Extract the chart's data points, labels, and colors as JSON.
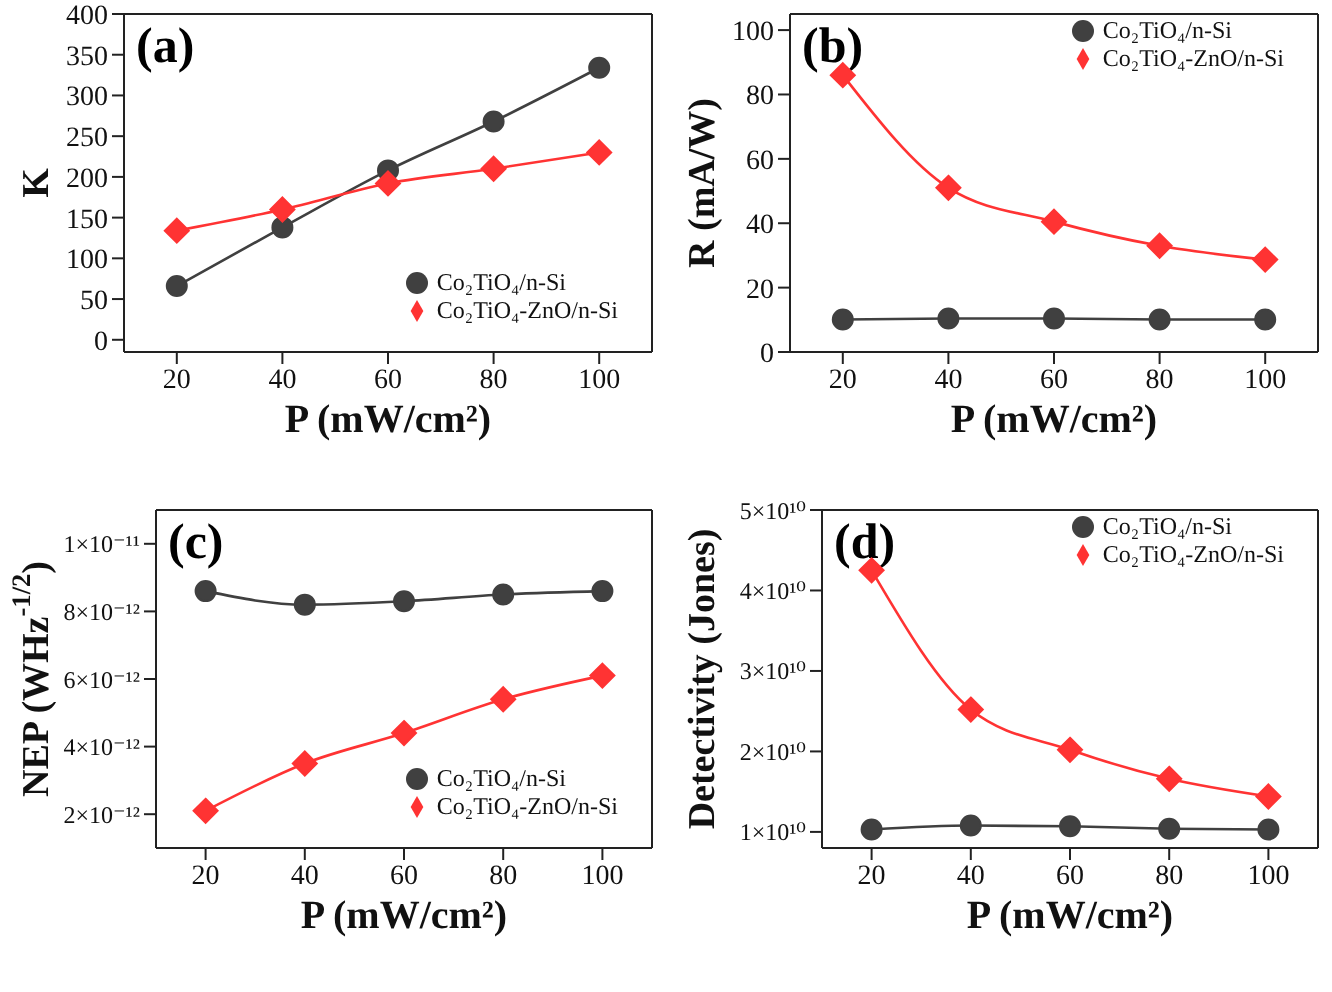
{
  "chart_data": [
    {
      "type": "line",
      "annotations": [
        "(a)"
      ],
      "xlabel": "P (mW/cm²)",
      "ylabel": "K",
      "x": [
        20,
        40,
        60,
        80,
        100
      ],
      "xlim": [
        10,
        110
      ],
      "xticks": [
        20,
        40,
        60,
        80,
        100
      ],
      "ylim": [
        -15,
        400
      ],
      "yticks": [
        0,
        50,
        100,
        150,
        200,
        250,
        300,
        350,
        400
      ],
      "legend": "bottom right",
      "line_style": "solid",
      "series": [
        {
          "name": "Co₂TiO₄/n-Si",
          "color": "#404040",
          "marker": "circle",
          "values": [
            66,
            138,
            208,
            268,
            334
          ]
        },
        {
          "name": "Co₂TiO₄-ZnO/n-Si",
          "color": "#ff3333",
          "marker": "diamond",
          "values": [
            134,
            160,
            192,
            210,
            230
          ]
        }
      ]
    },
    {
      "type": "line",
      "annotations": [
        "(b)"
      ],
      "xlabel": "P (mW/cm²)",
      "ylabel": "R (mA/W)",
      "x": [
        20,
        40,
        60,
        80,
        100
      ],
      "xlim": [
        10,
        110
      ],
      "xticks": [
        20,
        40,
        60,
        80,
        100
      ],
      "ylim": [
        0,
        105
      ],
      "yticks": [
        0,
        20,
        40,
        60,
        80,
        100
      ],
      "legend": "top right",
      "line_style": "solid",
      "series": [
        {
          "name": "Co₂TiO₄/n-Si",
          "color": "#404040",
          "marker": "circle",
          "values": [
            10.1,
            10.4,
            10.4,
            10.1,
            10.1
          ]
        },
        {
          "name": "Co₂TiO₄-ZnO/n-Si",
          "color": "#ff3333",
          "marker": "diamond",
          "values": [
            86,
            51,
            40.5,
            33,
            28.7
          ]
        }
      ]
    },
    {
      "type": "line",
      "annotations": [
        "(c)"
      ],
      "xlabel": "P (mW/cm²)",
      "ylabel": "NEP (WHz$^{-1/2}$)",
      "x": [
        20,
        40,
        60,
        80,
        100
      ],
      "xlim": [
        10,
        110
      ],
      "xticks": [
        20,
        40,
        60,
        80,
        100
      ],
      "ylim": [
        1e-12,
        1.1e-11
      ],
      "yticks": [
        {
          "value": 2e-12,
          "label": "2×10⁻¹²"
        },
        {
          "value": 4e-12,
          "label": "4×10⁻¹²"
        },
        {
          "value": 6e-12,
          "label": "6×10⁻¹²"
        },
        {
          "value": 8e-12,
          "label": "8×10⁻¹²"
        },
        {
          "value": 1e-11,
          "label": "1×10⁻¹¹"
        }
      ],
      "legend": "bottom right",
      "line_style": "solid",
      "series": [
        {
          "name": "Co₂TiO₄/n-Si",
          "color": "#404040",
          "marker": "circle",
          "values": [
            8.6e-12,
            8.2e-12,
            8.3e-12,
            8.5e-12,
            8.6e-12
          ]
        },
        {
          "name": "Co₂TiO₄-ZnO/n-Si",
          "color": "#ff3333",
          "marker": "diamond",
          "values": [
            2.1e-12,
            3.5e-12,
            4.4e-12,
            5.4e-12,
            6.1e-12
          ]
        }
      ]
    },
    {
      "type": "line",
      "annotations": [
        "(d)"
      ],
      "xlabel": "P (mW/cm²)",
      "ylabel": "Detectivity (Jones)",
      "x": [
        20,
        40,
        60,
        80,
        100
      ],
      "xlim": [
        10,
        110
      ],
      "xticks": [
        20,
        40,
        60,
        80,
        100
      ],
      "ylim": [
        8000000000.0,
        50000000000.0
      ],
      "yticks": [
        {
          "value": 10000000000.0,
          "label": "1×10¹⁰"
        },
        {
          "value": 20000000000.0,
          "label": "2×10¹⁰"
        },
        {
          "value": 30000000000.0,
          "label": "3×10¹⁰"
        },
        {
          "value": 40000000000.0,
          "label": "4×10¹⁰"
        },
        {
          "value": 50000000000.0,
          "label": "5×10¹⁰"
        }
      ],
      "legend": "top right",
      "line_style": "solid",
      "series": [
        {
          "name": "Co₂TiO₄/n-Si",
          "color": "#404040",
          "marker": "circle",
          "values": [
            10300000000.0,
            10800000000.0,
            10700000000.0,
            10400000000.0,
            10300000000.0
          ]
        },
        {
          "name": "Co₂TiO₄-ZnO/n-Si",
          "color": "#ff3333",
          "marker": "diamond",
          "values": [
            42500000000.0,
            25200000000.0,
            20200000000.0,
            16600000000.0,
            14400000000.0
          ]
        }
      ]
    }
  ]
}
